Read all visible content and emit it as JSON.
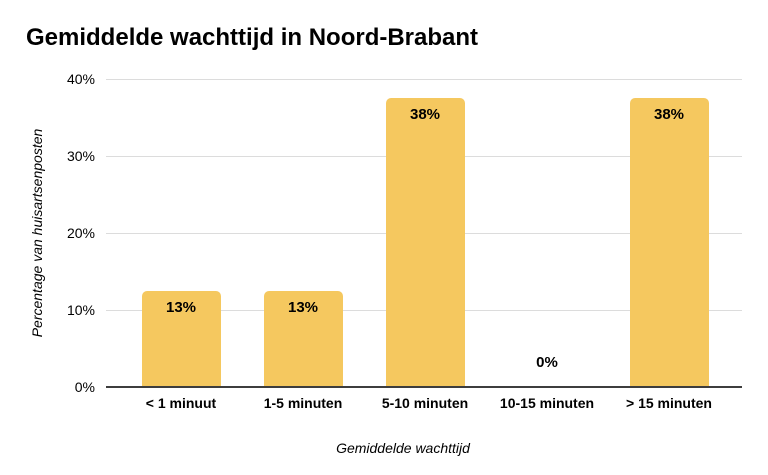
{
  "title": "Gemiddelde wachttijd in Noord-Brabant",
  "chart_data": {
    "type": "bar",
    "title": "Gemiddelde wachttijd in Noord-Brabant",
    "xlabel": "Gemiddelde wachttijd",
    "ylabel": "Percentage van huisartsenposten",
    "categories": [
      "< 1 minuut",
      "1-5 minuten",
      "5-10 minuten",
      "10-15 minuten",
      "> 15 minuten"
    ],
    "values": [
      12.5,
      12.5,
      37.5,
      0,
      37.5
    ],
    "bar_labels": [
      "13%",
      "13%",
      "38%",
      "0%",
      "38%"
    ],
    "ylim": [
      0,
      40
    ],
    "yticks": [
      0,
      10,
      20,
      30,
      40
    ],
    "ytick_labels": [
      "0%",
      "10%",
      "20%",
      "30%",
      "40%"
    ],
    "grid": true,
    "legend": false,
    "bar_color": "#F5C85F"
  },
  "colors": {
    "background": "#FFFFFF",
    "bar": "#F5C85F",
    "gridline": "#DCDCDC",
    "axis_line": "#3D3D3D",
    "text": "#000000"
  }
}
